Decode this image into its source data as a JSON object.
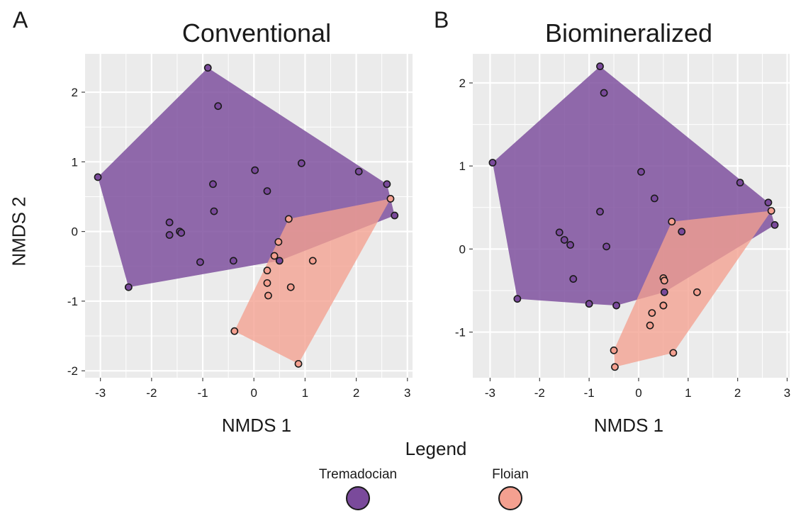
{
  "panels": [
    {
      "letter": "A",
      "title": "Conventional",
      "xlabel": "NMDS 1",
      "ylabel": "NMDS 2"
    },
    {
      "letter": "B",
      "title": "Biomineralized",
      "xlabel": "NMDS 1",
      "ylabel": ""
    }
  ],
  "legend": {
    "title": "Legend",
    "items": [
      {
        "label": "Tremadocian",
        "color": "#7a4a9b"
      },
      {
        "label": "Floian",
        "color": "#f4a090"
      }
    ]
  },
  "colors": {
    "panel_bg": "#ebebeb",
    "grid": "#ffffff",
    "tremadocian": "#7a4a9b",
    "floian": "#f4a090",
    "point_border": "#1a1a1a"
  },
  "chart_data": [
    {
      "type": "scatter",
      "title": "Conventional",
      "xlabel": "NMDS 1",
      "ylabel": "NMDS 2",
      "xlim": [
        -3.3,
        3.1
      ],
      "ylim": [
        -2.1,
        2.55
      ],
      "xticks": [
        -3,
        -2,
        -1,
        0,
        1,
        2,
        3
      ],
      "yticks": [
        -2,
        -1,
        0,
        1,
        2
      ],
      "grid": true,
      "hull": true,
      "series": [
        {
          "name": "Tremadocian",
          "x": [
            -0.9,
            -0.7,
            -3.05,
            -2.45,
            -1.65,
            -1.65,
            -1.45,
            -1.42,
            -1.05,
            -0.8,
            -0.78,
            -0.4,
            0.02,
            0.26,
            0.5,
            0.93,
            2.05,
            2.6,
            2.75
          ],
          "y": [
            2.35,
            1.8,
            0.78,
            -0.8,
            0.13,
            -0.05,
            0.0,
            -0.02,
            -0.44,
            0.68,
            0.29,
            -0.42,
            0.88,
            0.58,
            -0.42,
            0.98,
            0.86,
            0.68,
            0.23
          ]
        },
        {
          "name": "Floian",
          "x": [
            0.68,
            0.48,
            0.4,
            0.26,
            0.26,
            0.28,
            0.72,
            1.15,
            -0.38,
            0.87,
            2.67
          ],
          "y": [
            0.18,
            -0.15,
            -0.35,
            -0.56,
            -0.74,
            -0.92,
            -0.8,
            -0.42,
            -1.43,
            -1.9,
            0.47
          ]
        }
      ]
    },
    {
      "type": "scatter",
      "title": "Biomineralized",
      "xlabel": "NMDS 1",
      "ylabel": "",
      "xlim": [
        -3.35,
        3.05
      ],
      "ylim": [
        -1.55,
        2.35
      ],
      "xticks": [
        -3,
        -2,
        -1,
        0,
        1,
        2,
        3
      ],
      "yticks": [
        -1,
        0,
        1,
        2
      ],
      "grid": true,
      "hull": true,
      "series": [
        {
          "name": "Tremadocian",
          "x": [
            -0.78,
            -0.7,
            -2.95,
            -2.45,
            -1.6,
            -1.5,
            -1.38,
            -1.32,
            -1.0,
            -0.78,
            -0.65,
            -0.45,
            0.05,
            0.32,
            0.52,
            0.87,
            2.05,
            2.62,
            2.75
          ],
          "y": [
            2.2,
            1.88,
            1.04,
            -0.6,
            0.2,
            0.11,
            0.05,
            -0.36,
            -0.66,
            0.45,
            0.03,
            -0.68,
            0.93,
            0.61,
            -0.52,
            0.21,
            0.8,
            0.56,
            0.29
          ]
        },
        {
          "name": "Floian",
          "x": [
            0.67,
            0.5,
            0.52,
            0.5,
            0.27,
            0.23,
            0.5,
            1.18,
            -0.5,
            -0.48,
            0.7,
            2.68
          ],
          "y": [
            0.33,
            -0.35,
            -0.38,
            -0.68,
            -0.77,
            -0.92,
            -0.68,
            -0.52,
            -1.22,
            -1.42,
            -1.25,
            0.46
          ]
        }
      ]
    }
  ]
}
